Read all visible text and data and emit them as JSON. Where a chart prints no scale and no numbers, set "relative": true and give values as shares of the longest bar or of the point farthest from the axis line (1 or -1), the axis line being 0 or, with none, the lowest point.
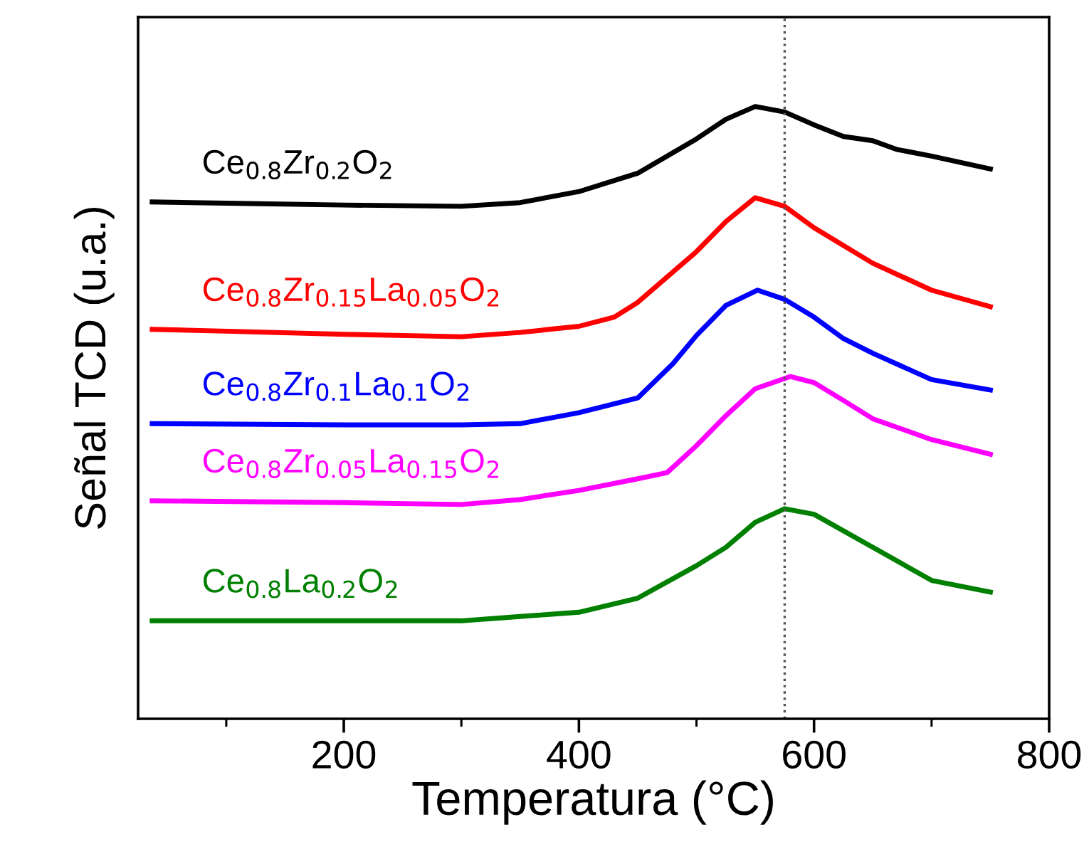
{
  "chart_data": {
    "type": "line",
    "relative": true,
    "xlabel": "Temperatura (°C)",
    "ylabel": "Señal TCD (u.a.)",
    "xlim": [
      25,
      800
    ],
    "xticks": [
      {
        "value": 100,
        "label": null
      },
      200,
      {
        "value": 300,
        "label": null
      },
      400,
      {
        "value": 500,
        "label": null
      },
      600,
      {
        "value": 700,
        "label": null
      },
      800
    ],
    "tick_labels": "x",
    "grid": false,
    "legend": false,
    "marker": "none",
    "line_style": "solid",
    "ref_lines": [
      {
        "axis": "x",
        "value": 575,
        "color": "#555555",
        "line_style": "dotted"
      }
    ],
    "series": [
      {
        "name": "Ce$_{0.8}$Zr$_{0.2}$O$_{2}$",
        "color": "#000000",
        "x": [
          37,
          100,
          200,
          300,
          350,
          400,
          450,
          500,
          525,
          550,
          575,
          600,
          625,
          650,
          670,
          700,
          750
        ],
        "values": [
          0.844,
          0.842,
          0.839,
          0.837,
          0.843,
          0.861,
          0.891,
          0.947,
          0.979,
          1.0,
          0.991,
          0.97,
          0.951,
          0.944,
          0.93,
          0.919,
          0.898
        ]
      },
      {
        "name": "Ce$_{0.8}$Zr$_{0.15}$La$_{0.05}$O$_{2}$",
        "color": "#ff0000",
        "x": [
          37,
          100,
          200,
          300,
          350,
          400,
          430,
          450,
          500,
          525,
          550,
          575,
          600,
          650,
          700,
          750
        ],
        "values": [
          0.636,
          0.633,
          0.628,
          0.624,
          0.631,
          0.641,
          0.656,
          0.68,
          0.763,
          0.812,
          0.851,
          0.837,
          0.802,
          0.744,
          0.7,
          0.673
        ]
      },
      {
        "name": "Ce$_{0.8}$Zr$_{0.1}$La$_{0.1}$O$_{2}$",
        "color": "#0000ff",
        "x": [
          37,
          200,
          300,
          350,
          400,
          450,
          480,
          500,
          525,
          552,
          575,
          600,
          625,
          650,
          700,
          750
        ],
        "values": [
          0.482,
          0.48,
          0.48,
          0.482,
          0.5,
          0.524,
          0.58,
          0.626,
          0.675,
          0.7,
          0.685,
          0.656,
          0.621,
          0.597,
          0.554,
          0.537
        ]
      },
      {
        "name": "Ce$_{0.8}$Zr$_{0.05}$La$_{0.15}$O$_{2}$",
        "color": "#ff00ff",
        "x": [
          37,
          200,
          300,
          350,
          400,
          450,
          475,
          500,
          525,
          550,
          580,
          600,
          625,
          650,
          700,
          750
        ],
        "values": [
          0.356,
          0.353,
          0.35,
          0.358,
          0.373,
          0.392,
          0.402,
          0.446,
          0.495,
          0.539,
          0.559,
          0.549,
          0.52,
          0.49,
          0.456,
          0.432
        ]
      },
      {
        "name": "Ce$_{0.8}$La$_{0.2}$O$_{2}$",
        "color": "#008000",
        "x": [
          37,
          200,
          300,
          350,
          400,
          450,
          500,
          525,
          550,
          575,
          600,
          650,
          700,
          750
        ],
        "values": [
          0.16,
          0.16,
          0.16,
          0.167,
          0.174,
          0.197,
          0.25,
          0.28,
          0.321,
          0.343,
          0.334,
          0.28,
          0.226,
          0.207
        ]
      }
    ]
  }
}
